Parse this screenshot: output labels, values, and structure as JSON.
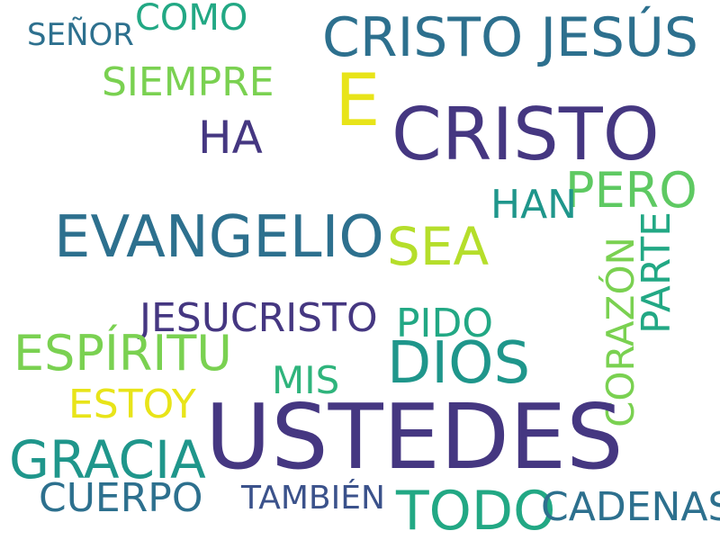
{
  "words": [
    {
      "text": "SEÑOR",
      "color": "#2d708e"
    },
    {
      "text": "COMO",
      "color": "#22a884"
    },
    {
      "text": "CRISTO JESÚS",
      "color": "#2d708e"
    },
    {
      "text": "SIEMPRE",
      "color": "#7ad151"
    },
    {
      "text": "E",
      "color": "#e8e419"
    },
    {
      "text": "CRISTO",
      "color": "#453781"
    },
    {
      "text": "HA",
      "color": "#453781"
    },
    {
      "text": "PERO",
      "color": "#5ec962"
    },
    {
      "text": "HAN",
      "color": "#1f968b"
    },
    {
      "text": "EVANGELIO",
      "color": "#2d708e"
    },
    {
      "text": "SEA",
      "color": "#b5de2b"
    },
    {
      "text": "CORAZÓN",
      "color": "#7ad151"
    },
    {
      "text": "PARTE",
      "color": "#22a884"
    },
    {
      "text": "JESUCRISTO",
      "color": "#453781"
    },
    {
      "text": "PIDO",
      "color": "#22a884"
    },
    {
      "text": "ESPÍRITU",
      "color": "#7ad151"
    },
    {
      "text": "DIOS",
      "color": "#1f968b"
    },
    {
      "text": "MIS",
      "color": "#2fb47c"
    },
    {
      "text": "ESTOY",
      "color": "#e8e419"
    },
    {
      "text": "USTEDES",
      "color": "#453781"
    },
    {
      "text": "GRACIA",
      "color": "#1f968b"
    },
    {
      "text": "CUERPO",
      "color": "#2d708e"
    },
    {
      "text": "TAMBIÉN",
      "color": "#3b528b"
    },
    {
      "text": "TODO",
      "color": "#22a884"
    },
    {
      "text": "CADENAS",
      "color": "#2d708e"
    }
  ]
}
